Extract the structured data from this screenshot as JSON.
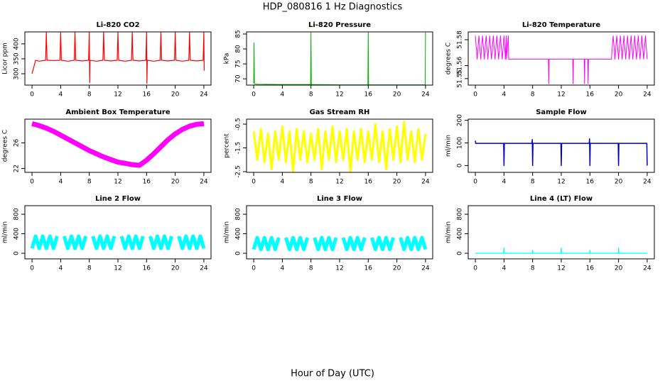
{
  "title": "HDP_080816  1 Hz Diagnostics",
  "xlabel": "Hour of Day (UTC)",
  "chart_data": [
    {
      "type": "line",
      "title": "Li-820 CO2",
      "ylabel": "Licor ppm",
      "color": "#ff0000",
      "linewidth": 1.2,
      "xlim": [
        -1,
        25
      ],
      "xticks": [
        0,
        4,
        8,
        12,
        16,
        20,
        24
      ],
      "ylim": [
        262,
        440
      ],
      "yticks": [
        300,
        350,
        400
      ],
      "x": [
        0,
        0.5,
        1,
        1.9,
        2,
        2.1,
        3,
        3.9,
        4,
        4.1,
        5,
        5.9,
        6,
        6.1,
        7,
        7.9,
        8,
        8.05,
        8.1,
        9,
        9.9,
        10,
        10.1,
        11,
        11.9,
        12,
        12.1,
        13,
        13.9,
        14,
        14.1,
        15,
        15.9,
        16,
        16.05,
        16.1,
        17,
        17.9,
        18,
        18.1,
        19,
        19.9,
        20,
        20.1,
        21,
        21.9,
        22,
        22.1,
        23,
        23.9,
        24,
        24.05
      ],
      "values": [
        300,
        345,
        342,
        345,
        438,
        345,
        344,
        345,
        438,
        345,
        342,
        345,
        438,
        345,
        343,
        345,
        438,
        270,
        345,
        342,
        345,
        438,
        345,
        343,
        345,
        438,
        345,
        342,
        345,
        438,
        345,
        343,
        345,
        438,
        268,
        345,
        342,
        345,
        438,
        345,
        343,
        345,
        438,
        345,
        342,
        345,
        438,
        345,
        343,
        345,
        438,
        310
      ]
    },
    {
      "type": "line",
      "title": "Li-820 Pressure",
      "ylabel": "kPa",
      "color": "#00b000",
      "linewidth": 1,
      "xlim": [
        -1,
        25
      ],
      "xticks": [
        0,
        4,
        8,
        12,
        16,
        20,
        24
      ],
      "ylim": [
        67.9,
        85.7
      ],
      "yticks": [
        70,
        75,
        80,
        85
      ],
      "x": [
        0,
        0.05,
        0.1,
        0.5,
        4,
        7.95,
        8,
        8.05,
        12,
        15.95,
        16,
        16.05,
        20,
        23.95,
        24
      ],
      "values": [
        68.5,
        82,
        68.3,
        68.2,
        68.1,
        68.1,
        85.5,
        68.1,
        68.0,
        68.0,
        85.8,
        68.0,
        68.0,
        68.0,
        85.5
      ]
    },
    {
      "type": "line",
      "title": "Li-820 Temperature",
      "ylabel": "degrees C",
      "color": "#ff00ff",
      "linewidth": 1,
      "xlim": [
        -1,
        25
      ],
      "xticks": [
        0,
        4,
        8,
        12,
        16,
        20,
        24
      ],
      "ylim": [
        51.545,
        51.586
      ],
      "yticks": [
        51.55,
        51.56,
        51.58
      ],
      "x": [
        0,
        0.25,
        0.5,
        0.75,
        1,
        1.25,
        1.5,
        1.75,
        2,
        2.25,
        2.5,
        2.75,
        3,
        3.25,
        3.5,
        3.75,
        4,
        4.2,
        4.3,
        4.35,
        4.6,
        4.65,
        10.2,
        10.25,
        10.3,
        13.6,
        13.65,
        13.7,
        15.2,
        15.25,
        15.3,
        15.7,
        15.75,
        15.8,
        19,
        19.25,
        19.5,
        19.75,
        20,
        20.25,
        20.5,
        20.75,
        21,
        21.25,
        21.5,
        21.75,
        22,
        22.25,
        22.5,
        22.75,
        23,
        23.25,
        23.5,
        23.75,
        24
      ],
      "values": [
        51.583,
        51.565,
        51.583,
        51.565,
        51.583,
        51.565,
        51.583,
        51.565,
        51.583,
        51.565,
        51.583,
        51.565,
        51.583,
        51.565,
        51.583,
        51.565,
        51.583,
        51.565,
        51.583,
        51.565,
        51.583,
        51.565,
        51.565,
        51.546,
        51.565,
        51.565,
        51.546,
        51.565,
        51.565,
        51.546,
        51.565,
        51.565,
        51.546,
        51.565,
        51.565,
        51.583,
        51.565,
        51.583,
        51.565,
        51.583,
        51.565,
        51.583,
        51.565,
        51.583,
        51.565,
        51.583,
        51.565,
        51.583,
        51.565,
        51.583,
        51.565,
        51.583,
        51.565,
        51.583,
        51.565
      ]
    },
    {
      "type": "line",
      "title": "Ambient Box Temperature",
      "ylabel": "degrees C",
      "color": "#ff00ff",
      "linewidth": 7,
      "xlim": [
        -1,
        25
      ],
      "xticks": [
        0,
        4,
        8,
        12,
        16,
        20,
        24
      ],
      "ylim": [
        21.4,
        29.7
      ],
      "yticks": [
        22,
        26
      ],
      "x": [
        0,
        1,
        2,
        3,
        4,
        5,
        6,
        7,
        8,
        9,
        10,
        11,
        12,
        13,
        14,
        15,
        16,
        17,
        18,
        19,
        20,
        21,
        22,
        23,
        24
      ],
      "values": [
        29.0,
        28.7,
        28.3,
        27.8,
        27.2,
        26.6,
        26.0,
        25.4,
        24.8,
        24.3,
        23.8,
        23.4,
        23.0,
        22.8,
        22.6,
        22.5,
        23.3,
        24.3,
        25.4,
        26.5,
        27.4,
        28.1,
        28.6,
        28.9,
        29.0
      ]
    },
    {
      "type": "line",
      "title": "Gas Stream RH",
      "ylabel": "percent",
      "color": "#ffff00",
      "linewidth": 3,
      "xlim": [
        -1,
        25
      ],
      "xticks": [
        0,
        4,
        8,
        12,
        16,
        20,
        24
      ],
      "ylim": [
        -2.53,
        -0.29
      ],
      "yticks": [
        -0.5,
        -1.5,
        -2.5
      ],
      "x": [
        0,
        0.5,
        1,
        1.5,
        2,
        2.5,
        3,
        3.5,
        4,
        4.5,
        5,
        5.5,
        6,
        6.5,
        7,
        7.5,
        8,
        8.5,
        9,
        9.5,
        10,
        10.5,
        11,
        11.5,
        12,
        12.5,
        13,
        13.5,
        14,
        14.5,
        15,
        15.5,
        16,
        16.5,
        17,
        17.5,
        18,
        18.5,
        19,
        19.5,
        20,
        20.5,
        21,
        21.5,
        22,
        22.5,
        23,
        23.5,
        24
      ],
      "values": [
        -0.8,
        -2.0,
        -0.7,
        -2.1,
        -0.9,
        -2.4,
        -0.8,
        -2.0,
        -0.6,
        -2.1,
        -0.8,
        -2.5,
        -0.7,
        -2.0,
        -0.8,
        -2.1,
        -0.9,
        -2.0,
        -0.7,
        -2.4,
        -0.8,
        -2.0,
        -0.6,
        -2.1,
        -0.8,
        -2.0,
        -0.7,
        -2.5,
        -0.8,
        -2.0,
        -0.7,
        -2.1,
        -0.8,
        -2.0,
        -0.5,
        -2.1,
        -0.8,
        -2.4,
        -0.7,
        -2.0,
        -0.6,
        -2.1,
        -0.4,
        -2.0,
        -0.8,
        -2.1,
        -0.7,
        -2.0,
        -0.9
      ]
    },
    {
      "type": "line",
      "title": "Sample Flow",
      "ylabel": "ml/min",
      "color": "#0000cc",
      "linewidth": 1.5,
      "xlim": [
        -1,
        25
      ],
      "xticks": [
        0,
        4,
        8,
        12,
        16,
        20,
        24
      ],
      "ylim": [
        -30,
        205
      ],
      "yticks": [
        0,
        100,
        200
      ],
      "x": [
        0,
        0.05,
        0.1,
        3.95,
        4,
        4.05,
        7.9,
        7.95,
        8,
        8.05,
        11.95,
        12,
        12.05,
        15.9,
        15.95,
        16,
        16.05,
        19.95,
        20,
        20.05,
        23.95,
        24
      ],
      "values": [
        110,
        98,
        98,
        98,
        0,
        98,
        98,
        115,
        0,
        98,
        98,
        0,
        98,
        98,
        118,
        0,
        98,
        98,
        0,
        98,
        98,
        0
      ]
    },
    {
      "type": "line",
      "title": "Line 2 Flow",
      "ylabel": "ml/min",
      "color": "#00ffff",
      "linewidth": 5,
      "xlim": [
        -1,
        25
      ],
      "xticks": [
        0,
        4,
        8,
        12,
        16,
        20,
        24
      ],
      "ylim": [
        -115,
        975
      ],
      "yticks": [
        0,
        400,
        800
      ],
      "x": [
        0,
        0.5,
        1,
        1.5,
        2,
        2.5,
        3,
        3.5,
        4,
        4.5,
        5,
        5.5,
        6,
        6.5,
        7,
        7.5,
        8,
        8.5,
        9,
        9.5,
        10,
        10.5,
        11,
        11.5,
        12,
        12.5,
        13,
        13.5,
        14,
        14.5,
        15,
        15.5,
        16,
        16.5,
        17,
        17.5,
        18,
        18.5,
        19,
        19.5,
        20,
        20.5,
        21,
        21.5,
        22,
        22.5,
        23,
        23.5,
        24
      ],
      "values": [
        100,
        350,
        100,
        350,
        100,
        350,
        100,
        350,
        null,
        350,
        100,
        350,
        100,
        350,
        100,
        350,
        null,
        350,
        100,
        350,
        100,
        350,
        100,
        350,
        null,
        350,
        100,
        350,
        100,
        350,
        100,
        350,
        null,
        350,
        100,
        350,
        100,
        350,
        100,
        350,
        null,
        350,
        100,
        350,
        100,
        350,
        100,
        350,
        100
      ]
    },
    {
      "type": "line",
      "title": "Line 3 Flow",
      "ylabel": "ml/min",
      "color": "#00ffff",
      "linewidth": 5,
      "xlim": [
        -1,
        25
      ],
      "xticks": [
        0,
        4,
        8,
        12,
        16,
        20,
        24
      ],
      "ylim": [
        -115,
        975
      ],
      "yticks": [
        0,
        400,
        800
      ],
      "x": [
        0,
        0.5,
        1,
        1.5,
        2,
        2.5,
        3,
        3.5,
        4,
        4.5,
        5,
        5.5,
        6,
        6.5,
        7,
        7.5,
        8,
        8.5,
        9,
        9.5,
        10,
        10.5,
        11,
        11.5,
        12,
        12.5,
        13,
        13.5,
        14,
        14.5,
        15,
        15.5,
        16,
        16.5,
        17,
        17.5,
        18,
        18.5,
        19,
        19.5,
        20,
        20.5,
        21,
        21.5,
        22,
        22.5,
        23,
        23.5,
        24
      ],
      "values": [
        80,
        320,
        80,
        320,
        80,
        320,
        80,
        320,
        null,
        320,
        80,
        320,
        80,
        320,
        80,
        320,
        null,
        320,
        80,
        320,
        80,
        320,
        80,
        320,
        null,
        320,
        80,
        320,
        80,
        320,
        80,
        320,
        null,
        320,
        80,
        320,
        80,
        320,
        80,
        320,
        null,
        320,
        80,
        320,
        80,
        320,
        80,
        320,
        80
      ]
    },
    {
      "type": "line",
      "title": "Line 4 (LT) Flow",
      "ylabel": "ml/min",
      "color": "#00ffff",
      "linewidth": 1.2,
      "xlim": [
        -1,
        25
      ],
      "xticks": [
        0,
        4,
        8,
        12,
        16,
        20,
        24
      ],
      "ylim": [
        -115,
        975
      ],
      "yticks": [
        0,
        400,
        800
      ],
      "x": [
        0,
        3.95,
        4,
        4.05,
        7.95,
        8,
        8.05,
        11.95,
        12,
        12.05,
        15.95,
        16,
        16.05,
        19.95,
        20,
        20.05,
        24
      ],
      "values": [
        0,
        0,
        110,
        0,
        0,
        60,
        0,
        0,
        110,
        0,
        0,
        60,
        0,
        0,
        110,
        0,
        0
      ]
    }
  ]
}
